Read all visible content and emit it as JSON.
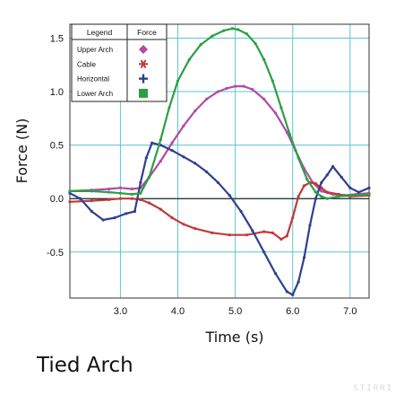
{
  "caption": "Tied Arch",
  "watermark": "STIRRI",
  "chart_data": {
    "type": "line",
    "xlabel": "Time (s)",
    "ylabel": "Force (N)",
    "xlim": [
      2.12,
      7.33
    ],
    "ylim": [
      -0.93,
      1.63
    ],
    "xticks": [
      3.0,
      4.0,
      5.0,
      6.0,
      7.0
    ],
    "yticks": [
      -0.5,
      0.0,
      0.5,
      1.0,
      1.5
    ],
    "xtick_labels": [
      "3.0",
      "4.0",
      "5.0",
      "6.0",
      "7.0"
    ],
    "ytick_labels": [
      "-0.5",
      "0.0",
      "0.5",
      "1.0",
      "1.5"
    ],
    "grid": true,
    "legend": {
      "placement": "top-left",
      "header_left": "Legend",
      "header_right": "Force"
    },
    "series": [
      {
        "name": "Upper Arch",
        "color": "#b04aa8",
        "marker": "diamond",
        "x": [
          2.12,
          2.5,
          2.8,
          3.0,
          3.2,
          3.35,
          3.5,
          3.7,
          3.9,
          4.1,
          4.3,
          4.5,
          4.7,
          4.85,
          5.0,
          5.15,
          5.3,
          5.5,
          5.7,
          5.9,
          6.05,
          6.2,
          6.35,
          6.5,
          6.7,
          6.9,
          7.1,
          7.33
        ],
        "y": [
          0.07,
          0.08,
          0.09,
          0.1,
          0.09,
          0.1,
          0.2,
          0.35,
          0.52,
          0.68,
          0.82,
          0.93,
          1.0,
          1.03,
          1.05,
          1.05,
          1.02,
          0.93,
          0.8,
          0.62,
          0.45,
          0.28,
          0.15,
          0.07,
          0.04,
          0.03,
          0.04,
          0.05
        ]
      },
      {
        "name": "Cable",
        "color": "#c23838",
        "marker": "asterisk",
        "x": [
          2.12,
          2.5,
          2.8,
          3.0,
          3.2,
          3.35,
          3.5,
          3.7,
          3.9,
          4.1,
          4.3,
          4.6,
          4.9,
          5.2,
          5.5,
          5.65,
          5.8,
          5.9,
          6.0,
          6.1,
          6.2,
          6.3,
          6.4,
          6.5,
          6.6,
          6.8,
          7.0,
          7.33
        ],
        "y": [
          -0.03,
          -0.02,
          -0.01,
          0.0,
          0.0,
          -0.01,
          -0.04,
          -0.1,
          -0.18,
          -0.24,
          -0.28,
          -0.32,
          -0.34,
          -0.34,
          -0.31,
          -0.32,
          -0.38,
          -0.35,
          -0.18,
          0.02,
          0.12,
          0.15,
          0.14,
          0.1,
          0.06,
          0.04,
          0.02,
          0.03
        ]
      },
      {
        "name": "Horizontal",
        "color": "#2f3f8f",
        "marker": "cross",
        "x": [
          2.12,
          2.3,
          2.5,
          2.7,
          2.9,
          3.1,
          3.25,
          3.35,
          3.45,
          3.55,
          3.7,
          3.9,
          4.1,
          4.3,
          4.5,
          4.7,
          4.9,
          5.1,
          5.3,
          5.5,
          5.7,
          5.9,
          6.0,
          6.1,
          6.2,
          6.3,
          6.4,
          6.5,
          6.6,
          6.7,
          6.85,
          7.0,
          7.15,
          7.33
        ],
        "y": [
          0.05,
          0.0,
          -0.12,
          -0.2,
          -0.18,
          -0.14,
          -0.12,
          0.15,
          0.38,
          0.52,
          0.5,
          0.45,
          0.39,
          0.33,
          0.25,
          0.15,
          0.03,
          -0.12,
          -0.3,
          -0.5,
          -0.7,
          -0.87,
          -0.9,
          -0.78,
          -0.55,
          -0.25,
          0.0,
          0.15,
          0.22,
          0.3,
          0.2,
          0.1,
          0.06,
          0.1
        ]
      },
      {
        "name": "Lower Arch",
        "color": "#2aa043",
        "marker": "square",
        "x": [
          2.12,
          2.5,
          2.8,
          3.0,
          3.2,
          3.35,
          3.5,
          3.7,
          3.85,
          4.0,
          4.2,
          4.4,
          4.6,
          4.8,
          4.95,
          5.05,
          5.2,
          5.35,
          5.5,
          5.65,
          5.8,
          5.95,
          6.1,
          6.25,
          6.4,
          6.5,
          6.6,
          6.8,
          7.0,
          7.33
        ],
        "y": [
          0.07,
          0.07,
          0.06,
          0.05,
          0.04,
          0.05,
          0.2,
          0.55,
          0.85,
          1.1,
          1.3,
          1.44,
          1.52,
          1.57,
          1.59,
          1.58,
          1.54,
          1.45,
          1.3,
          1.1,
          0.85,
          0.6,
          0.38,
          0.18,
          0.06,
          0.02,
          0.0,
          0.02,
          0.03,
          0.04
        ]
      }
    ]
  }
}
